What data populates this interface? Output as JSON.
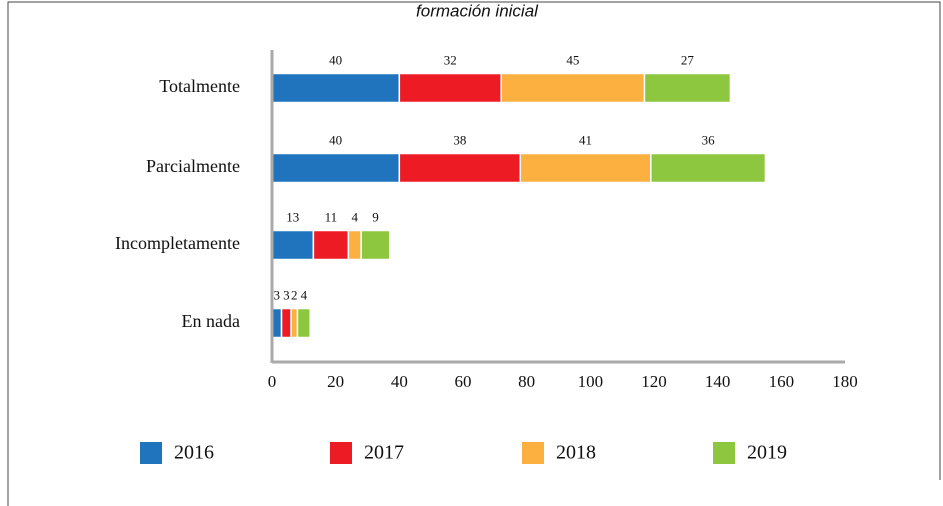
{
  "chart_data": {
    "type": "bar",
    "orientation": "horizontal",
    "stacked": true,
    "title": "formación inicial",
    "categories": [
      "Totalmente",
      "Parcialmente",
      "Incompletamente",
      "En nada"
    ],
    "series": [
      {
        "name": "2016",
        "color": "#1f74bd",
        "values": [
          40,
          40,
          13,
          3
        ]
      },
      {
        "name": "2017",
        "color": "#ed1c24",
        "values": [
          32,
          38,
          11,
          3
        ]
      },
      {
        "name": "2018",
        "color": "#fbb040",
        "values": [
          45,
          41,
          4,
          2
        ]
      },
      {
        "name": "2019",
        "color": "#8dc63f",
        "values": [
          27,
          36,
          9,
          4
        ]
      }
    ],
    "xlim": [
      0,
      180
    ],
    "xticks": [
      0,
      20,
      40,
      60,
      80,
      100,
      120,
      140,
      160,
      180
    ],
    "legend": "bottom"
  }
}
